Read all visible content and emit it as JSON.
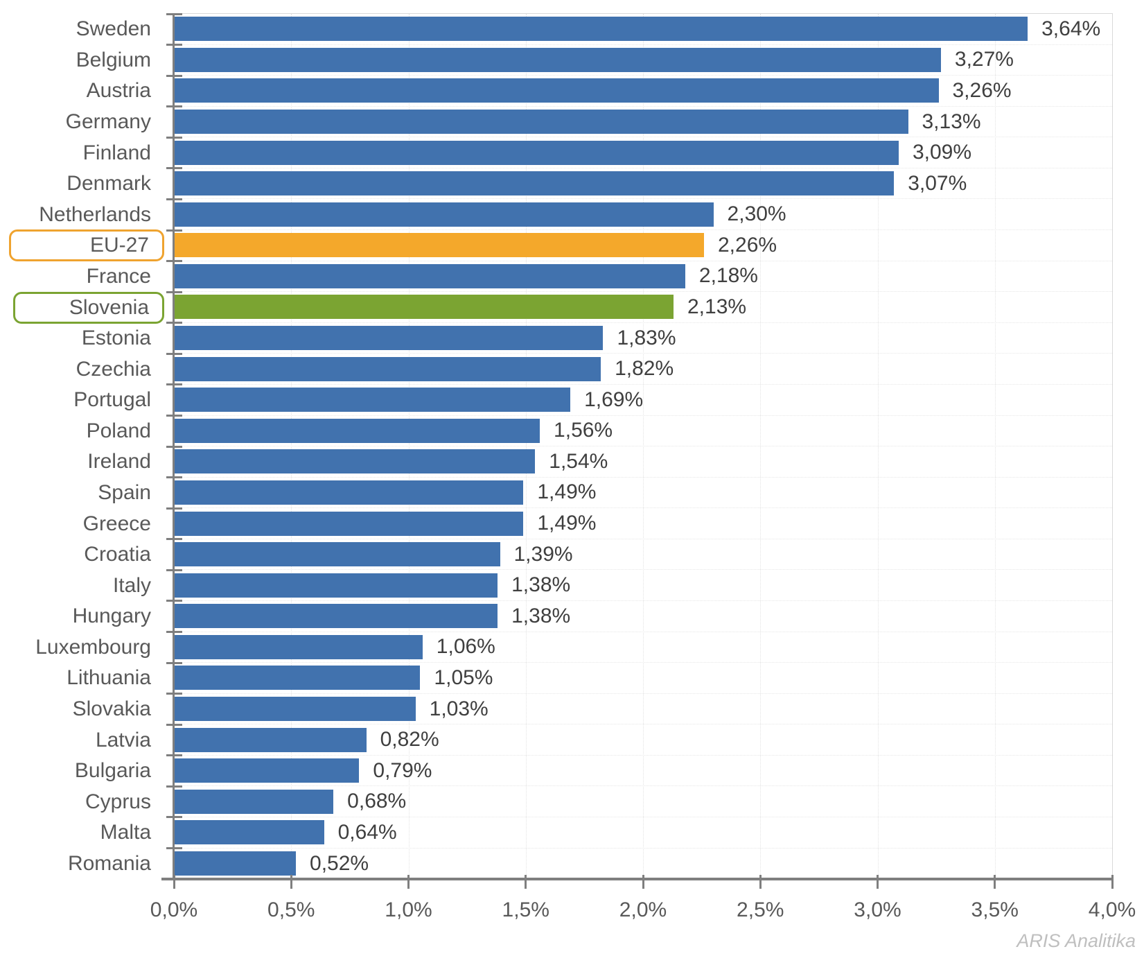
{
  "chart_data": {
    "type": "bar",
    "orientation": "horizontal",
    "title": "",
    "xlabel": "",
    "ylabel": "",
    "xlim": [
      0,
      4.0
    ],
    "x_tick_values": [
      0,
      0.5,
      1.0,
      1.5,
      2.0,
      2.5,
      3.0,
      3.5,
      4.0
    ],
    "x_tick_labels": [
      "0,0%",
      "0,5%",
      "1,0%",
      "1,5%",
      "2,0%",
      "2,5%",
      "3,0%",
      "3,5%",
      "4,0%"
    ],
    "grid": "faint dotted vertical at each 0.5% and horizontal at category boundaries",
    "legend": "none",
    "rows": [
      {
        "label": "Sweden",
        "value": 3.64,
        "display": "3,64%",
        "color": "blue",
        "highlight": null
      },
      {
        "label": "Belgium",
        "value": 3.27,
        "display": "3,27%",
        "color": "blue",
        "highlight": null
      },
      {
        "label": "Austria",
        "value": 3.26,
        "display": "3,26%",
        "color": "blue",
        "highlight": null
      },
      {
        "label": "Germany",
        "value": 3.13,
        "display": "3,13%",
        "color": "blue",
        "highlight": null
      },
      {
        "label": "Finland",
        "value": 3.09,
        "display": "3,09%",
        "color": "blue",
        "highlight": null
      },
      {
        "label": "Denmark",
        "value": 3.07,
        "display": "3,07%",
        "color": "blue",
        "highlight": null
      },
      {
        "label": "Netherlands",
        "value": 2.3,
        "display": "2,30%",
        "color": "blue",
        "highlight": null
      },
      {
        "label": "EU-27",
        "value": 2.26,
        "display": "2,26%",
        "color": "orange",
        "highlight": "orange"
      },
      {
        "label": "France",
        "value": 2.18,
        "display": "2,18%",
        "color": "blue",
        "highlight": null
      },
      {
        "label": "Slovenia",
        "value": 2.13,
        "display": "2,13%",
        "color": "green",
        "highlight": "green"
      },
      {
        "label": "Estonia",
        "value": 1.83,
        "display": "1,83%",
        "color": "blue",
        "highlight": null
      },
      {
        "label": "Czechia",
        "value": 1.82,
        "display": "1,82%",
        "color": "blue",
        "highlight": null
      },
      {
        "label": "Portugal",
        "value": 1.69,
        "display": "1,69%",
        "color": "blue",
        "highlight": null
      },
      {
        "label": "Poland",
        "value": 1.56,
        "display": "1,56%",
        "color": "blue",
        "highlight": null
      },
      {
        "label": "Ireland",
        "value": 1.54,
        "display": "1,54%",
        "color": "blue",
        "highlight": null
      },
      {
        "label": "Spain",
        "value": 1.49,
        "display": "1,49%",
        "color": "blue",
        "highlight": null
      },
      {
        "label": "Greece",
        "value": 1.49,
        "display": "1,49%",
        "color": "blue",
        "highlight": null
      },
      {
        "label": "Croatia",
        "value": 1.39,
        "display": "1,39%",
        "color": "blue",
        "highlight": null
      },
      {
        "label": "Italy",
        "value": 1.38,
        "display": "1,38%",
        "color": "blue",
        "highlight": null
      },
      {
        "label": "Hungary",
        "value": 1.38,
        "display": "1,38%",
        "color": "blue",
        "highlight": null
      },
      {
        "label": "Luxembourg",
        "value": 1.06,
        "display": "1,06%",
        "color": "blue",
        "highlight": null
      },
      {
        "label": "Lithuania",
        "value": 1.05,
        "display": "1,05%",
        "color": "blue",
        "highlight": null
      },
      {
        "label": "Slovakia",
        "value": 1.03,
        "display": "1,03%",
        "color": "blue",
        "highlight": null
      },
      {
        "label": "Latvia",
        "value": 0.82,
        "display": "0,82%",
        "color": "blue",
        "highlight": null
      },
      {
        "label": "Bulgaria",
        "value": 0.79,
        "display": "0,79%",
        "color": "blue",
        "highlight": null
      },
      {
        "label": "Cyprus",
        "value": 0.68,
        "display": "0,68%",
        "color": "blue",
        "highlight": null
      },
      {
        "label": "Malta",
        "value": 0.64,
        "display": "0,64%",
        "color": "blue",
        "highlight": null
      },
      {
        "label": "Romania",
        "value": 0.52,
        "display": "0,52%",
        "color": "blue",
        "highlight": null
      }
    ]
  },
  "colors": {
    "bar_blue": "#4172AE",
    "bar_orange": "#F4A82B",
    "bar_green": "#7BA432",
    "highlight_orange_border": "#EFA32F",
    "highlight_green_border": "#7BA432",
    "axis_line": "#7F7F7F",
    "category_label_text": "#595959",
    "value_label_text": "#3F3F3F",
    "watermark_text": "#BFBFBF"
  },
  "watermark": "ARIS Analitika"
}
